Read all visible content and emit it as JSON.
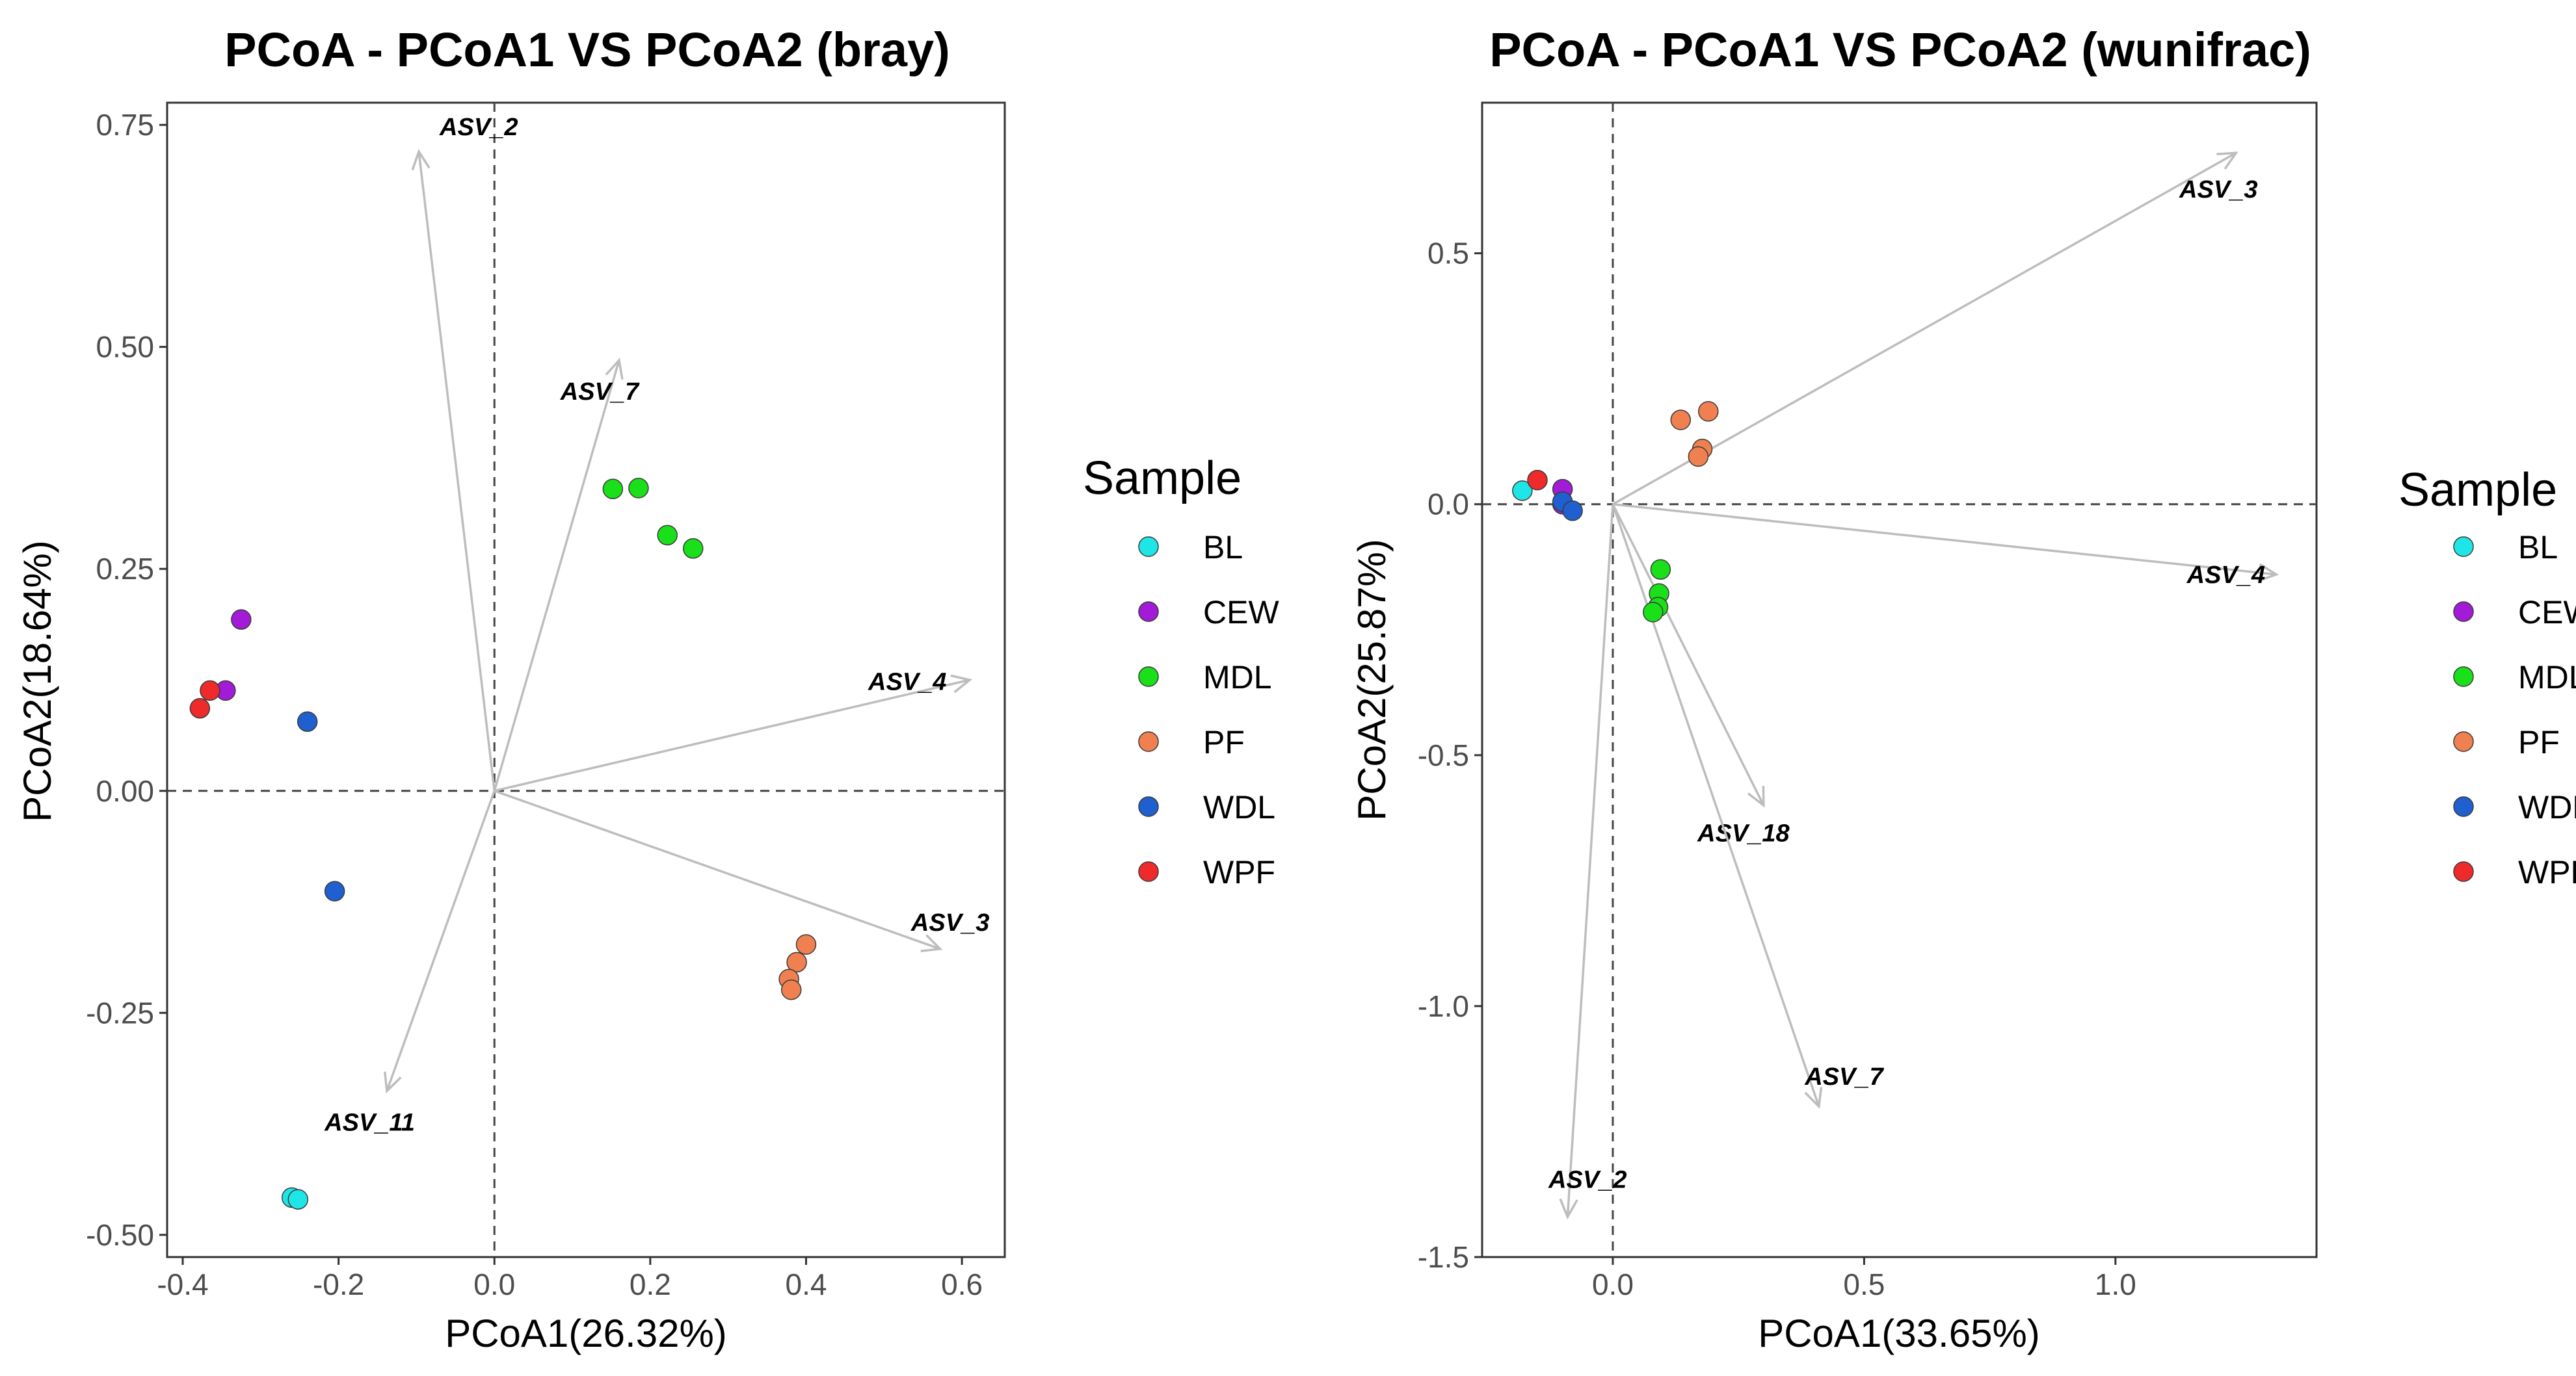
{
  "legend": {
    "title": "Sample",
    "groups": [
      {
        "name": "BL",
        "color": "#1fe6e6"
      },
      {
        "name": "CEW",
        "color": "#a21bd6"
      },
      {
        "name": "MDL",
        "color": "#19e019"
      },
      {
        "name": "PF",
        "color": "#f08050"
      },
      {
        "name": "WDL",
        "color": "#1f5fd0"
      },
      {
        "name": "WPF",
        "color": "#ee2a2a"
      }
    ]
  },
  "chart_data": [
    {
      "type": "scatter",
      "title": "PCoA - PCoA1 VS PCoA2 (bray)",
      "xlabel": "PCoA1(26.32%)",
      "ylabel": "PCoA2(18.64%)",
      "xlim": [
        -0.42,
        0.655
      ],
      "ylim": [
        -0.525,
        0.775
      ],
      "xticks": [
        -0.4,
        -0.2,
        0.0,
        0.2,
        0.4,
        0.6
      ],
      "xtick_labels": [
        "-0.4",
        "-0.2",
        "0.0",
        "0.2",
        "0.4",
        "0.6"
      ],
      "yticks": [
        -0.5,
        -0.25,
        0.0,
        0.25,
        0.5,
        0.75
      ],
      "ytick_labels": [
        "-0.50",
        "-0.25",
        "0.00",
        "0.25",
        "0.50",
        "0.75"
      ],
      "points": [
        {
          "group": "BL",
          "x": -0.26,
          "y": -0.458
        },
        {
          "group": "BL",
          "x": -0.252,
          "y": -0.46
        },
        {
          "group": "CEW",
          "x": -0.325,
          "y": 0.193
        },
        {
          "group": "CEW",
          "x": -0.345,
          "y": 0.113
        },
        {
          "group": "MDL",
          "x": 0.152,
          "y": 0.34
        },
        {
          "group": "MDL",
          "x": 0.185,
          "y": 0.341
        },
        {
          "group": "MDL",
          "x": 0.222,
          "y": 0.288
        },
        {
          "group": "MDL",
          "x": 0.255,
          "y": 0.273
        },
        {
          "group": "PF",
          "x": 0.4,
          "y": -0.173
        },
        {
          "group": "PF",
          "x": 0.388,
          "y": -0.193
        },
        {
          "group": "PF",
          "x": 0.378,
          "y": -0.212
        },
        {
          "group": "PF",
          "x": 0.381,
          "y": -0.224
        },
        {
          "group": "WDL",
          "x": -0.24,
          "y": 0.078
        },
        {
          "group": "WDL",
          "x": -0.205,
          "y": -0.113
        },
        {
          "group": "WPF",
          "x": -0.365,
          "y": 0.113
        },
        {
          "group": "WPF",
          "x": -0.378,
          "y": 0.093
        }
      ],
      "loadings": [
        {
          "name": "ASV_2",
          "x": -0.097,
          "y": 0.72,
          "lx": -0.02,
          "ly": 0.748
        },
        {
          "name": "ASV_7",
          "x": 0.16,
          "y": 0.485,
          "lx": 0.135,
          "ly": 0.45
        },
        {
          "name": "ASV_4",
          "x": 0.61,
          "y": 0.125,
          "lx": 0.53,
          "ly": 0.123
        },
        {
          "name": "ASV_3",
          "x": 0.572,
          "y": -0.178,
          "lx": 0.585,
          "ly": -0.148
        },
        {
          "name": "ASV_11",
          "x": -0.138,
          "y": -0.338,
          "lx": -0.16,
          "ly": -0.373
        }
      ]
    },
    {
      "type": "scatter",
      "title": "PCoA - PCoA1 VS PCoA2 (wunifrac)",
      "xlabel": "PCoA1(33.65%)",
      "ylabel": "PCoA2(25.87%)",
      "xlim": [
        -0.26,
        1.4
      ],
      "ylim": [
        -1.5,
        0.8
      ],
      "xticks": [
        0.0,
        0.5,
        1.0
      ],
      "xtick_labels": [
        "0.0",
        "0.5",
        "1.0"
      ],
      "yticks": [
        -1.5,
        -1.0,
        -0.5,
        0.0,
        0.5
      ],
      "ytick_labels": [
        "-1.5",
        "-1.0",
        "-0.5",
        "0.0",
        "0.5"
      ],
      "points": [
        {
          "group": "BL",
          "x": -0.18,
          "y": 0.027
        },
        {
          "group": "CEW",
          "x": -0.1,
          "y": 0.03
        },
        {
          "group": "CEW",
          "x": -0.1,
          "y": 0.0
        },
        {
          "group": "MDL",
          "x": 0.095,
          "y": -0.13
        },
        {
          "group": "MDL",
          "x": 0.092,
          "y": -0.178
        },
        {
          "group": "MDL",
          "x": 0.09,
          "y": -0.205
        },
        {
          "group": "MDL",
          "x": 0.08,
          "y": -0.215
        },
        {
          "group": "PF",
          "x": 0.135,
          "y": 0.168
        },
        {
          "group": "PF",
          "x": 0.19,
          "y": 0.185
        },
        {
          "group": "PF",
          "x": 0.178,
          "y": 0.11
        },
        {
          "group": "PF",
          "x": 0.17,
          "y": 0.095
        },
        {
          "group": "WDL",
          "x": -0.1,
          "y": 0.005
        },
        {
          "group": "WDL",
          "x": -0.08,
          "y": -0.013
        },
        {
          "group": "WPF",
          "x": -0.15,
          "y": 0.048
        }
      ],
      "loadings": [
        {
          "name": "ASV_3",
          "x": 1.24,
          "y": 0.7,
          "lx": 1.205,
          "ly": 0.628
        },
        {
          "name": "ASV_4",
          "x": 1.32,
          "y": -0.14,
          "lx": 1.22,
          "ly": -0.14
        },
        {
          "name": "ASV_18",
          "x": 0.3,
          "y": -0.6,
          "lx": 0.26,
          "ly": -0.655
        },
        {
          "name": "ASV_7",
          "x": 0.41,
          "y": -1.2,
          "lx": 0.46,
          "ly": -1.14
        },
        {
          "name": "ASV_2",
          "x": -0.09,
          "y": -1.42,
          "lx": -0.05,
          "ly": -1.345
        }
      ]
    }
  ]
}
